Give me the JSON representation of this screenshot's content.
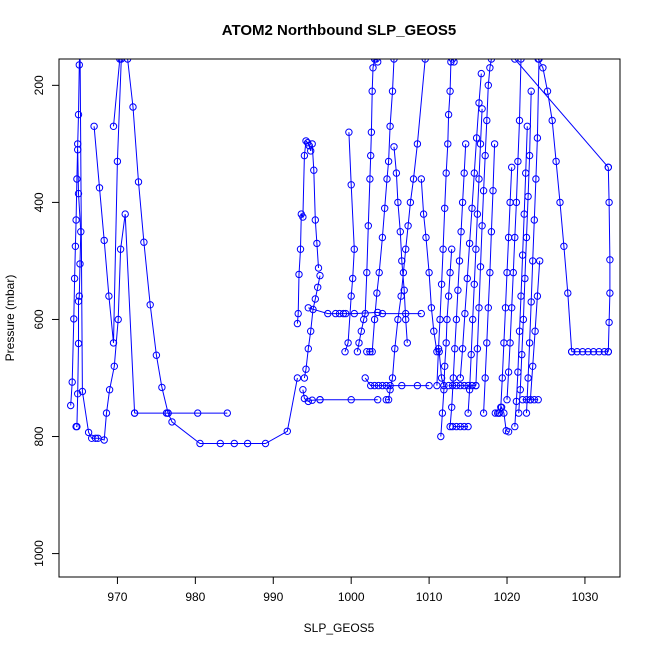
{
  "chart_data": {
    "type": "line",
    "title": "ATOM2 Northbound SLP_GEOS5",
    "xlabel": "SLP_GEOS5",
    "ylabel": "Pressure (mbar)",
    "xlim": [
      962.5,
      1034.5
    ],
    "ylim": [
      1040,
      155
    ],
    "y_reversed": true,
    "x_ticks": [
      970,
      980,
      990,
      1000,
      1010,
      1020,
      1030
    ],
    "y_ticks": [
      200,
      400,
      600,
      800,
      1000
    ],
    "grid": false,
    "marker": "open-circle",
    "color": "#0000ff",
    "series": [
      {
        "x": [
          964.0,
          964.2,
          964.4,
          964.5,
          964.6,
          964.7,
          964.8,
          964.9,
          965.0,
          965.1,
          965.2,
          965.5,
          966.3,
          966.7,
          967.2,
          967.5,
          968.3,
          968.6,
          969.0,
          969.6,
          970.1,
          970.4,
          971.0,
          972.2
        ],
        "y": [
          747,
          707,
          599,
          530,
          475,
          430,
          360,
          300,
          250,
          165,
          125,
          723,
          793,
          803,
          803,
          803,
          806,
          760,
          720,
          680,
          600,
          480,
          420,
          760
        ]
      },
      {
        "x": [
          964.7,
          964.8,
          964.9,
          965.0,
          965.0,
          965.1,
          965.2,
          965.3,
          965.0,
          964.9
        ],
        "y": [
          783,
          783,
          727,
          641,
          569,
          560,
          505,
          450,
          385,
          310
        ]
      },
      {
        "x": [
          967.0,
          967.7,
          968.3,
          968.9,
          969.5,
          970.0,
          970.5
        ],
        "y": [
          270,
          375,
          465,
          560,
          640,
          330,
          155
        ]
      },
      {
        "x": [
          969.5,
          970.3,
          971.3,
          972.0,
          972.7,
          973.4,
          974.2,
          975.0,
          975.7,
          976.5
        ],
        "y": [
          270,
          155,
          155,
          237,
          365,
          468,
          575,
          661,
          716,
          760
        ]
      },
      {
        "x": [
          972.2,
          976.3,
          980.3,
          984.1
        ],
        "y": [
          760,
          760,
          760,
          760
        ]
      },
      {
        "x": [
          976.5,
          977.0,
          980.6,
          983.2,
          985.0,
          986.7,
          989.0,
          991.8,
          993.1
        ],
        "y": [
          760,
          775,
          812,
          812,
          812,
          812,
          812,
          791,
          700
        ]
      },
      {
        "x": [
          993.1,
          993.2,
          993.3,
          993.5,
          993.6,
          993.8,
          994.0,
          994.2,
          994.4,
          994.6,
          994.8,
          995.0,
          995.2,
          995.4,
          995.6,
          995.8
        ],
        "y": [
          607,
          590,
          523,
          480,
          420,
          425,
          320,
          295,
          298,
          303,
          312,
          300,
          345,
          430,
          470,
          512
        ]
      },
      {
        "x": [
          994.0,
          994.2,
          994.5,
          994.8,
          995.1,
          995.4,
          995.7,
          996.0
        ],
        "y": [
          700,
          685,
          650,
          620,
          583,
          565,
          545,
          525
        ]
      },
      {
        "x": [
          993.8,
          994.0,
          994.5,
          995.0,
          996.0
        ],
        "y": [
          720,
          735,
          740,
          738,
          737
        ]
      },
      {
        "x": [
          994.5,
          997.0,
          998.0,
          998.5,
          999.0,
          999.3,
          1000.4,
          1003.4,
          1004.0,
          1007.0,
          1009.0
        ],
        "y": [
          580,
          590,
          590,
          590,
          590,
          590,
          590,
          588,
          590,
          590,
          590
        ]
      },
      {
        "x": [
          996.0,
          1000.0,
          1003.4
        ],
        "y": [
          737,
          737,
          737
        ]
      },
      {
        "x": [
          999.2,
          999.6,
          1000.0,
          1000.2,
          1000.4,
          1000.0,
          999.7
        ],
        "y": [
          655,
          640,
          560,
          530,
          480,
          370,
          280
        ]
      },
      {
        "x": [
          1000.8,
          1001.0,
          1001.3,
          1001.6,
          1001.8,
          1002.0,
          1002.2,
          1002.4,
          1002.5,
          1002.6,
          1002.7,
          1002.8,
          1003.0,
          1003.2,
          1003.4
        ],
        "y": [
          655,
          640,
          620,
          600,
          590,
          520,
          440,
          360,
          320,
          280,
          210,
          170,
          155,
          155,
          160
        ]
      },
      {
        "x": [
          1001.8,
          1002.5,
          1003.0,
          1003.5,
          1004.0,
          1004.5,
          1005.0,
          1006.5,
          1008.5,
          1010.0
        ],
        "y": [
          700,
          713,
          713,
          713,
          713,
          713,
          713,
          713,
          713,
          713
        ]
      },
      {
        "x": [
          1002.0,
          1002.4,
          1002.7,
          1003.0,
          1003.3,
          1003.6,
          1004.0,
          1004.3,
          1004.6,
          1004.8,
          1005.0,
          1005.3,
          1005.5
        ],
        "y": [
          655,
          655,
          655,
          600,
          555,
          520,
          460,
          410,
          360,
          330,
          270,
          210,
          155
        ]
      },
      {
        "x": [
          1004.5,
          1004.8,
          1005.0,
          1005.3,
          1005.6,
          1006.0,
          1006.4,
          1006.7,
          1007.0,
          1007.3,
          1007.6,
          1008.0,
          1008.5,
          1009.5
        ],
        "y": [
          737,
          737,
          720,
          700,
          650,
          600,
          560,
          520,
          480,
          440,
          400,
          360,
          300,
          155
        ]
      },
      {
        "x": [
          1005.5,
          1005.8,
          1006.0,
          1006.3,
          1006.5,
          1006.8,
          1007.0,
          1007.2
        ],
        "y": [
          305,
          350,
          400,
          450,
          500,
          550,
          600,
          640
        ]
      },
      {
        "x": [
          1009.0,
          1009.3,
          1009.6,
          1010.0,
          1010.3,
          1010.6,
          1011.0,
          1011.3,
          1011.6,
          1011.9
        ],
        "y": [
          360,
          420,
          460,
          520,
          580,
          620,
          655,
          655,
          700,
          713
        ]
      },
      {
        "x": [
          1011.0,
          1011.2,
          1011.4,
          1011.6,
          1011.8,
          1012.0,
          1012.2,
          1012.4,
          1012.5,
          1012.7,
          1012.8,
          1013.0,
          1013.2
        ],
        "y": [
          713,
          650,
          600,
          540,
          480,
          410,
          350,
          300,
          250,
          210,
          160,
          155,
          160
        ]
      },
      {
        "x": [
          1011.5,
          1011.7,
          1011.9,
          1012.0,
          1012.2,
          1012.3,
          1012.5,
          1012.7,
          1012.9
        ],
        "y": [
          800,
          760,
          720,
          680,
          640,
          600,
          560,
          520,
          480
        ]
      },
      {
        "x": [
          1012.5,
          1013.0,
          1013.5,
          1014.0,
          1014.5,
          1015.0,
          1015.5,
          1016.0
        ],
        "y": [
          713,
          713,
          713,
          713,
          713,
          713,
          713,
          713
        ]
      },
      {
        "x": [
          1012.7,
          1012.9,
          1013.1,
          1013.3,
          1013.5,
          1013.7,
          1013.9,
          1014.1,
          1014.3,
          1014.5,
          1014.7
        ],
        "y": [
          783,
          750,
          700,
          650,
          600,
          550,
          500,
          450,
          400,
          350,
          300
        ]
      },
      {
        "x": [
          1013.0,
          1013.5,
          1014.0,
          1014.5,
          1015.0
        ],
        "y": [
          783,
          783,
          783,
          783,
          783
        ]
      },
      {
        "x": [
          1014.0,
          1014.3,
          1014.6,
          1014.9,
          1015.2,
          1015.5,
          1015.8,
          1016.1,
          1016.4,
          1016.7
        ],
        "y": [
          700,
          650,
          590,
          530,
          470,
          410,
          350,
          290,
          230,
          180
        ]
      },
      {
        "x": [
          1015.0,
          1015.2,
          1015.4,
          1015.6,
          1015.8,
          1016.0,
          1016.2,
          1016.4,
          1016.6,
          1016.8
        ],
        "y": [
          760,
          720,
          660,
          600,
          540,
          480,
          420,
          360,
          300,
          240
        ]
      },
      {
        "x": [
          1016.0,
          1016.2,
          1016.4,
          1016.6,
          1016.8,
          1017.0,
          1017.2,
          1017.4,
          1017.6,
          1017.8,
          1018.0
        ],
        "y": [
          713,
          650,
          580,
          510,
          440,
          380,
          320,
          260,
          200,
          170,
          155
        ]
      },
      {
        "x": [
          1017.0,
          1017.2,
          1017.4,
          1017.6,
          1017.8,
          1018.0,
          1018.2,
          1018.4
        ],
        "y": [
          760,
          700,
          640,
          580,
          520,
          450,
          380,
          300
        ]
      },
      {
        "x": [
          1018.5,
          1018.8,
          1019.0,
          1019.3,
          1019.6,
          1019.9,
          1020.2
        ],
        "y": [
          760,
          760,
          760,
          750,
          760,
          790,
          792
        ]
      },
      {
        "x": [
          1019.0,
          1019.2,
          1019.4,
          1019.6,
          1019.8,
          1020.0,
          1020.2,
          1020.4,
          1020.6
        ],
        "y": [
          760,
          750,
          700,
          640,
          580,
          520,
          460,
          400,
          340
        ]
      },
      {
        "x": [
          1020.0,
          1020.2,
          1020.4,
          1020.6,
          1020.8,
          1021.0,
          1021.2,
          1021.4,
          1021.6,
          1021.8
        ],
        "y": [
          737,
          690,
          640,
          580,
          520,
          460,
          400,
          330,
          260,
          155
        ]
      },
      {
        "x": [
          1021.0,
          1021.2,
          1021.4,
          1021.6,
          1021.8,
          1022.0,
          1022.2,
          1022.4,
          1022.6
        ],
        "y": [
          783,
          740,
          690,
          620,
          560,
          490,
          420,
          350,
          270
        ]
      },
      {
        "x": [
          1021.5,
          1021.7,
          1021.9,
          1022.1,
          1022.3,
          1022.5,
          1022.7,
          1022.9,
          1023.1
        ],
        "y": [
          760,
          720,
          660,
          600,
          530,
          460,
          390,
          320,
          210
        ]
      },
      {
        "x": [
          1022.0,
          1022.5,
          1023.0,
          1023.5,
          1024.0
        ],
        "y": [
          737,
          737,
          737,
          737,
          737
        ]
      },
      {
        "x": [
          1022.5,
          1022.7,
          1022.9,
          1023.1,
          1023.3,
          1023.5,
          1023.7,
          1023.9,
          1024.1
        ],
        "y": [
          760,
          700,
          640,
          570,
          500,
          430,
          360,
          290,
          155
        ]
      },
      {
        "x": [
          1023.0,
          1023.3,
          1023.6,
          1023.9,
          1024.2
        ],
        "y": [
          737,
          680,
          620,
          560,
          500
        ]
      },
      {
        "x": [
          1024.0,
          1024.6,
          1025.2,
          1025.8,
          1026.3,
          1026.8,
          1027.3,
          1027.8,
          1028.3
        ],
        "y": [
          155,
          170,
          210,
          260,
          330,
          400,
          475,
          555,
          655
        ]
      },
      {
        "x": [
          1028.3,
          1029.0,
          1029.7,
          1030.4,
          1031.1,
          1031.8,
          1032.5,
          1033.0
        ],
        "y": [
          655,
          655,
          655,
          655,
          655,
          655,
          655,
          655
        ]
      },
      {
        "x": [
          1033.0,
          1033.1,
          1033.2,
          1033.2,
          1033.1,
          1033.0
        ],
        "y": [
          655,
          605,
          555,
          498,
          400,
          340
        ]
      },
      {
        "x": [
          1021.0,
          1033.0
        ],
        "y": [
          155,
          340
        ]
      }
    ]
  }
}
